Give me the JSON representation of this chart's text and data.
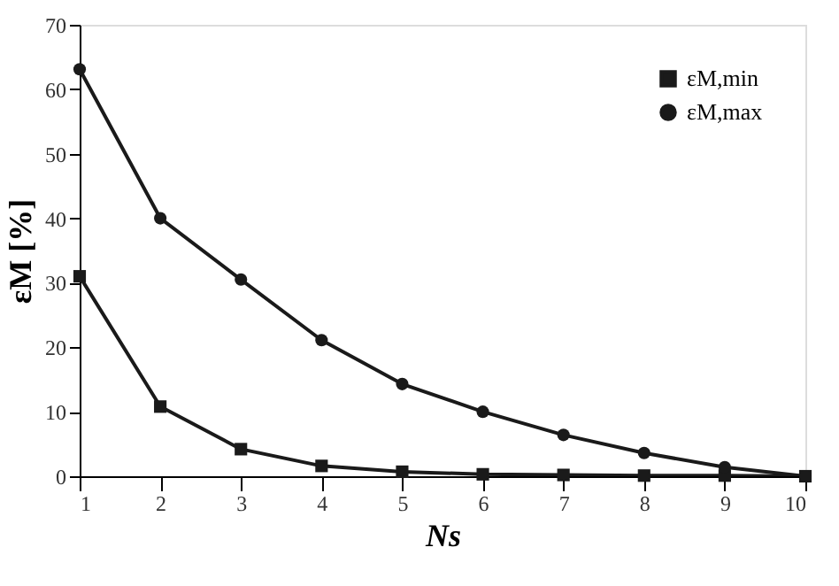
{
  "chart_data": {
    "type": "line",
    "xlabel": "Ns",
    "ylabel": "εM [%]",
    "x": [
      1,
      2,
      3,
      4,
      5,
      6,
      7,
      8,
      9,
      10
    ],
    "series": [
      {
        "name": "εM,min",
        "color": "#1a1a1a",
        "marker": "square",
        "values": [
          31,
          10.8,
          4.2,
          1.6,
          0.7,
          0.3,
          0.2,
          0.1,
          0.1,
          0
        ]
      },
      {
        "name": "εM,max",
        "color": "#1a1a1a",
        "marker": "circle",
        "values": [
          63.1,
          40,
          30.5,
          21.1,
          14.3,
          10,
          6.4,
          3.6,
          1.4,
          0
        ]
      }
    ],
    "xlim": [
      1,
      10
    ],
    "xticks": [
      1,
      2,
      3,
      4,
      5,
      6,
      7,
      8,
      9,
      10
    ],
    "ylim": [
      0,
      70
    ],
    "yticks": [
      0,
      10,
      20,
      30,
      40,
      50,
      60,
      70
    ],
    "grid": false,
    "legend": "top right",
    "line_style": "solid"
  }
}
